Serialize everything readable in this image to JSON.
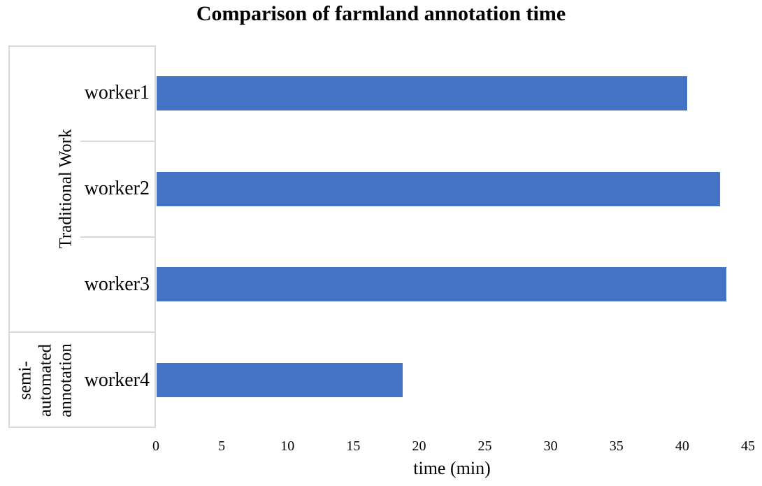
{
  "chart_data": {
    "type": "bar",
    "orientation": "horizontal",
    "title": "Comparison of farmland annotation time",
    "xlabel": "time (min)",
    "categories": [
      "worker1",
      "worker2",
      "worker3",
      "worker4"
    ],
    "values": [
      40.3,
      42.8,
      43.3,
      18.7
    ],
    "groups": [
      {
        "label": "Traditional Work",
        "lines": [
          "Traditional Work"
        ],
        "start": 0,
        "end": 3
      },
      {
        "label": "semi-automated annotation",
        "lines": [
          "semi-",
          "automated",
          "annotation"
        ],
        "start": 3,
        "end": 4
      }
    ],
    "xlim": [
      0,
      45
    ],
    "xticks": [
      0,
      5,
      10,
      15,
      20,
      25,
      30,
      35,
      40,
      45
    ],
    "grid": false,
    "legend": false,
    "bar_color": "#4472C4",
    "axis_line_color": "#D9D9D9",
    "text_color": "#000000",
    "background": "#FFFFFF"
  }
}
